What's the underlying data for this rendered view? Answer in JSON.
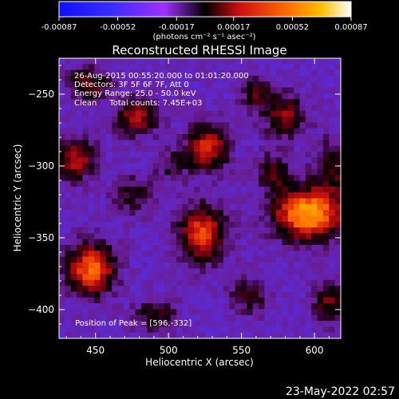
{
  "chart_data": {
    "type": "heatmap",
    "title": "Reconstructed RHESSI Image",
    "xlabel": "Heliocentric X (arcsec)",
    "ylabel": "Heliocentric Y (arcsec)",
    "xlim": [
      425,
      618
    ],
    "ylim": [
      -420,
      -225
    ],
    "x_ticks": [
      450,
      500,
      550,
      600
    ],
    "y_ticks": [
      -250,
      -300,
      -350,
      -400
    ],
    "colorbar": {
      "colormap": "std-gamma-II",
      "range": [
        -0.00087,
        0.00087
      ],
      "tick_labels": [
        "-0.00087",
        "-0.00052",
        "-0.00017",
        "0.00017",
        "0.00052",
        "0.00087"
      ],
      "unit_label": "(photons cm⁻² s⁻¹ asec⁻²)"
    },
    "annotations": [
      "26-Aug-2015 00:55:20.000 to 01:01:20.000",
      "Detectors: 3F 5F 6F 7F, Att 0",
      "Energy Range: 25.0 - 50.0 keV",
      "Clean     Total counts: 7.45E+03",
      "Position of Peak = [596,-332]"
    ],
    "peak": {
      "x": 596,
      "y": -332
    },
    "sources": [
      {
        "x": 596,
        "y": -333,
        "sx": 16,
        "sy": 12,
        "amp": 1.0
      },
      {
        "x": 447,
        "y": -372,
        "sx": 11,
        "sy": 12,
        "amp": 0.8
      },
      {
        "x": 436,
        "y": -295,
        "sx": 9,
        "sy": 10,
        "amp": 0.55
      },
      {
        "x": 527,
        "y": -287,
        "sx": 10,
        "sy": 11,
        "amp": 0.62
      },
      {
        "x": 523,
        "y": -347,
        "sx": 11,
        "sy": 13,
        "amp": 0.7
      },
      {
        "x": 478,
        "y": -266,
        "sx": 10,
        "sy": 9,
        "amp": 0.5
      },
      {
        "x": 580,
        "y": -265,
        "sx": 10,
        "sy": 10,
        "amp": 0.46
      },
      {
        "x": 612,
        "y": -300,
        "sx": 8,
        "sy": 12,
        "amp": 0.4
      },
      {
        "x": 572,
        "y": -304,
        "sx": 8,
        "sy": 9,
        "amp": 0.36
      },
      {
        "x": 475,
        "y": -320,
        "sx": 9,
        "sy": 9,
        "amp": 0.3
      },
      {
        "x": 446,
        "y": -243,
        "sx": 10,
        "sy": 8,
        "amp": 0.4
      },
      {
        "x": 560,
        "y": -250,
        "sx": 8,
        "sy": 8,
        "amp": 0.32
      },
      {
        "x": 491,
        "y": -404,
        "sx": 10,
        "sy": 8,
        "amp": 0.34
      },
      {
        "x": 555,
        "y": -390,
        "sx": 9,
        "sy": 9,
        "amp": 0.3
      },
      {
        "x": 610,
        "y": -396,
        "sx": 8,
        "sy": 10,
        "amp": 0.38
      },
      {
        "x": 502,
        "y": -300,
        "sx": 8,
        "sy": 8,
        "amp": 0.24
      }
    ]
  },
  "footer": {
    "timestamp": "23-May-2022 02:57"
  }
}
